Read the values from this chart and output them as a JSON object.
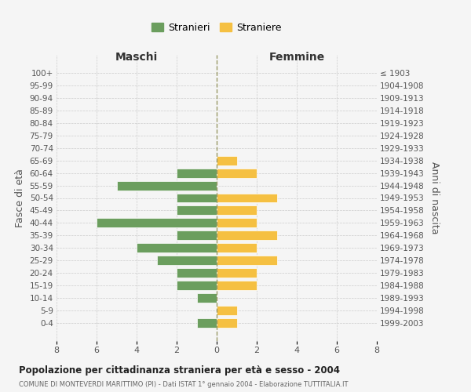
{
  "age_groups": [
    "100+",
    "95-99",
    "90-94",
    "85-89",
    "80-84",
    "75-79",
    "70-74",
    "65-69",
    "60-64",
    "55-59",
    "50-54",
    "45-49",
    "40-44",
    "35-39",
    "30-34",
    "25-29",
    "20-24",
    "15-19",
    "10-14",
    "5-9",
    "0-4"
  ],
  "birth_years": [
    "≤ 1903",
    "1904-1908",
    "1909-1913",
    "1914-1918",
    "1919-1923",
    "1924-1928",
    "1929-1933",
    "1934-1938",
    "1939-1943",
    "1944-1948",
    "1949-1953",
    "1954-1958",
    "1959-1963",
    "1964-1968",
    "1969-1973",
    "1974-1978",
    "1979-1983",
    "1984-1988",
    "1989-1993",
    "1994-1998",
    "1999-2003"
  ],
  "males": [
    0,
    0,
    0,
    0,
    0,
    0,
    0,
    0,
    2,
    5,
    2,
    2,
    6,
    2,
    4,
    3,
    2,
    2,
    1,
    0,
    1
  ],
  "females": [
    0,
    0,
    0,
    0,
    0,
    0,
    0,
    1,
    2,
    0,
    3,
    2,
    2,
    3,
    2,
    3,
    2,
    2,
    0,
    1,
    1
  ],
  "male_color": "#6b9e5e",
  "female_color": "#f5c042",
  "background_color": "#f5f5f5",
  "grid_color": "#cccccc",
  "title": "Popolazione per cittadinanza straniera per età e sesso - 2004",
  "subtitle": "COMUNE DI MONTEVERDI MARITTIMO (PI) - Dati ISTAT 1° gennaio 2004 - Elaborazione TUTTITALIA.IT",
  "ylabel_left": "Fasce di età",
  "ylabel_right": "Anni di nascita",
  "xlabel_left": "Maschi",
  "xlabel_right": "Femmine",
  "legend_male": "Stranieri",
  "legend_female": "Straniere",
  "xlim": 8,
  "dashed_line_color": "#999966"
}
